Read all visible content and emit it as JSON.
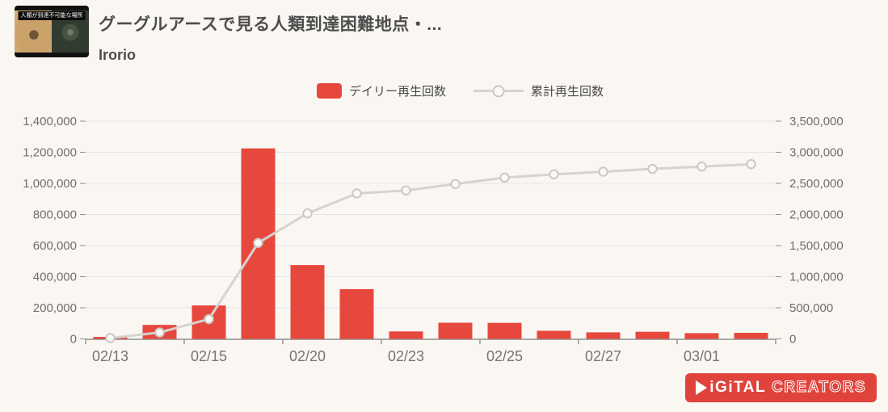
{
  "header": {
    "title": "グーグルアースで見る人類到達困難地点・...",
    "subtitle": "Irorio",
    "thumbnail_caption": "人類が到達不可能な場所"
  },
  "legend": {
    "daily_label": "デイリー再生回数",
    "cumulative_label": "累計再生回数"
  },
  "logo": {
    "part1": "iGiTAL",
    "part2": "CREATORS"
  },
  "colors": {
    "bar": "#e7483e",
    "line": "#d6d3d0",
    "marker_fill": "#fbf9f6",
    "marker_stroke": "#cbc8c5",
    "grid": "#e1e4ef",
    "axis": "#8f8f8f",
    "y_tick_label": "#6f6f6f",
    "x_tick_label": "#757575",
    "background": "#faf7f2",
    "brand_red": "#e0433c"
  },
  "chart_data": {
    "type": "bar+line dual-axis",
    "title": "",
    "categories": [
      "02/13",
      "",
      "02/15",
      "",
      "02/20",
      "",
      "02/23",
      "",
      "02/25",
      "",
      "02/27",
      "",
      "03/01",
      ""
    ],
    "x_tick_labels_visible": [
      "02/13",
      "02/15",
      "02/20",
      "02/23",
      "02/25",
      "02/27",
      "03/01"
    ],
    "series": [
      {
        "name": "デイリー再生回数",
        "type": "bar",
        "axis": "left",
        "values": [
          13000,
          90000,
          215000,
          1225000,
          475000,
          320000,
          48000,
          104000,
          103000,
          52000,
          42000,
          46000,
          37000,
          39000
        ]
      },
      {
        "name": "累計再生回数",
        "type": "line",
        "axis": "right",
        "values": [
          13000,
          103000,
          318000,
          1543000,
          2018000,
          2338000,
          2386000,
          2490000,
          2593000,
          2645000,
          2687000,
          2733000,
          2770000,
          2809000
        ]
      }
    ],
    "left_axis": {
      "min": 0,
      "max": 1400000,
      "tick_step": 200000,
      "tick_labels": [
        "0",
        "200,000",
        "400,000",
        "600,000",
        "800,000",
        "1,000,000",
        "1,200,000",
        "1,400,000"
      ]
    },
    "right_axis": {
      "min": 0,
      "max": 3500000,
      "tick_step": 500000,
      "tick_labels": [
        "0",
        "500,000",
        "1,000,000",
        "1,500,000",
        "2,000,000",
        "2,500,000",
        "3,000,000",
        "3,500,000"
      ]
    },
    "grid": "horizontal-only",
    "legend_position": "top-center"
  }
}
